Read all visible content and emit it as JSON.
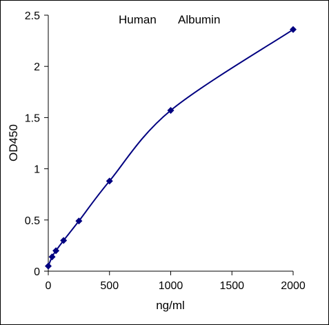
{
  "chart_data": {
    "type": "scatter",
    "title_left": "Human",
    "title_right": "Albumin",
    "xlabel": "ng/ml",
    "ylabel": "OD450",
    "xlim": [
      0,
      2000
    ],
    "ylim": [
      0,
      2.5
    ],
    "x_ticks": [
      0,
      500,
      1000,
      1500,
      2000
    ],
    "x_tick_labels": [
      "0",
      "500",
      "1000",
      "1500",
      "2000"
    ],
    "y_ticks": [
      0,
      0.5,
      1,
      1.5,
      2,
      2.5
    ],
    "y_tick_labels": [
      "0",
      "0.5",
      "1",
      "1.5",
      "2",
      "2.5"
    ],
    "grid": false,
    "series": [
      {
        "color": "#000080",
        "marker": "diamond",
        "x": [
          0,
          31.25,
          62.5,
          125,
          250,
          500,
          1000,
          2000
        ],
        "y": [
          0.05,
          0.14,
          0.2,
          0.3,
          0.49,
          0.88,
          1.57,
          2.36
        ]
      }
    ]
  }
}
